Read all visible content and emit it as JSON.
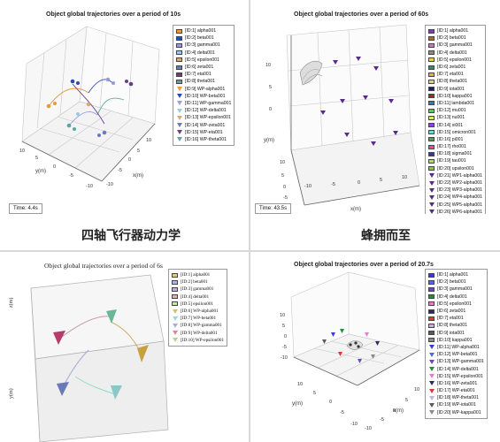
{
  "panel1": {
    "title": "Object global trajectories over a period of 10s",
    "time": "Time: 4.4s",
    "caption": "四轴飞行器动力学",
    "axes": {
      "y_label": "y(m)",
      "x_label": "x(m)",
      "y_ticks": [
        "10",
        "5",
        "0",
        "-5",
        "-10"
      ],
      "x_ticks": [
        "10",
        "5",
        "0",
        "-5",
        "-10"
      ]
    },
    "legend": [
      {
        "label": "[ID:1] alpha001",
        "color": "#e89a3c",
        "kind": "swatch"
      },
      {
        "label": "[ID:2] beta001",
        "color": "#2a4ca8",
        "kind": "swatch"
      },
      {
        "label": "[ID:3] gamma001",
        "color": "#9b9bd6",
        "kind": "swatch"
      },
      {
        "label": "[ID:4] delta001",
        "color": "#9cc8e8",
        "kind": "swatch"
      },
      {
        "label": "[ID:5] epsilon001",
        "color": "#d8a878",
        "kind": "swatch"
      },
      {
        "label": "[ID:6] zeta001",
        "color": "#6a7abf",
        "kind": "swatch"
      },
      {
        "label": "[ID:7] eta001",
        "color": "#6a3c8a",
        "kind": "swatch"
      },
      {
        "label": "[ID:8] theta001",
        "color": "#5aa8a0",
        "kind": "swatch"
      },
      {
        "label": "[ID:9] WP-alpha001",
        "color": "#e89a3c",
        "kind": "marker"
      },
      {
        "label": "[ID:10] WP-beta001",
        "color": "#2a4ca8",
        "kind": "marker"
      },
      {
        "label": "[ID:11] WP-gamma001",
        "color": "#9b9bd6",
        "kind": "marker"
      },
      {
        "label": "[ID:12] WP-delta001",
        "color": "#9cc8e8",
        "kind": "marker"
      },
      {
        "label": "[ID:13] WP-epsilon001",
        "color": "#d8a878",
        "kind": "marker"
      },
      {
        "label": "[ID:14] WP-zeta001",
        "color": "#6a7abf",
        "kind": "marker"
      },
      {
        "label": "[ID:15] WP-eta001",
        "color": "#6a3c8a",
        "kind": "marker"
      },
      {
        "label": "[ID:16] WP-theta001",
        "color": "#5aa8a0",
        "kind": "marker"
      }
    ]
  },
  "panel2": {
    "title": "Object global trajectories over a period of 60s",
    "time": "Time: 43.5s",
    "caption": "蜂拥而至",
    "axes": {
      "y_label": "y(m)",
      "x_label": "x(m)",
      "y_ticks": [
        "10",
        "5",
        "0",
        "-5",
        "-10"
      ],
      "x_ticks": [
        "-10",
        "-5",
        "0",
        "5",
        "10"
      ],
      "z_ticks": [
        "10",
        "5",
        "0"
      ]
    },
    "legend": [
      {
        "label": "[ID:1] alpha001",
        "color": "#7a3fa8",
        "kind": "swatch"
      },
      {
        "label": "[ID:2] beta001",
        "color": "#a86c3a",
        "kind": "swatch"
      },
      {
        "label": "[ID:3] gamma001",
        "color": "#c87ac8",
        "kind": "swatch"
      },
      {
        "label": "[ID:4] delta001",
        "color": "#8a8a8a",
        "kind": "swatch"
      },
      {
        "label": "[ID:5] epsilon001",
        "color": "#e8d04a",
        "kind": "swatch"
      },
      {
        "label": "[ID:6] zeta001",
        "color": "#3a8a6a",
        "kind": "swatch"
      },
      {
        "label": "[ID:7] eta001",
        "color": "#e8b040",
        "kind": "swatch"
      },
      {
        "label": "[ID:8] theta001",
        "color": "#d8d0a0",
        "kind": "swatch"
      },
      {
        "label": "[ID:9] iota001",
        "color": "#20205a",
        "kind": "swatch"
      },
      {
        "label": "[ID:10] kappa001",
        "color": "#a02a2a",
        "kind": "swatch"
      },
      {
        "label": "[ID:11] lambda001",
        "color": "#2a7ad8",
        "kind": "swatch"
      },
      {
        "label": "[ID:12] mu001",
        "color": "#60c860",
        "kind": "swatch"
      },
      {
        "label": "[ID:13] nu001",
        "color": "#d8e870",
        "kind": "swatch"
      },
      {
        "label": "[ID:14] xi001",
        "color": "#9a3ae8",
        "kind": "swatch"
      },
      {
        "label": "[ID:15] omicron001",
        "color": "#70d8d8",
        "kind": "swatch"
      },
      {
        "label": "[ID:16] pi001",
        "color": "#5a9a5a",
        "kind": "swatch"
      },
      {
        "label": "[ID:17] rho001",
        "color": "#e84a8a",
        "kind": "swatch"
      },
      {
        "label": "[ID:18] sigma001",
        "color": "#3a3a9a",
        "kind": "swatch"
      },
      {
        "label": "[ID:19] tau001",
        "color": "#b0e050",
        "kind": "swatch"
      },
      {
        "label": "[ID:20] upsilon001",
        "color": "#8ac848",
        "kind": "swatch"
      },
      {
        "label": "[ID:21] WP1-alpha001",
        "color": "#5a2a8a",
        "kind": "marker"
      },
      {
        "label": "[ID:22] WP2-alpha001",
        "color": "#5a2a8a",
        "kind": "marker"
      },
      {
        "label": "[ID:23] WP3-alpha001",
        "color": "#5a2a8a",
        "kind": "marker"
      },
      {
        "label": "[ID:24] WP4-alpha001",
        "color": "#5a2a8a",
        "kind": "marker"
      },
      {
        "label": "[ID:25] WP5-alpha001",
        "color": "#5a2a8a",
        "kind": "marker"
      },
      {
        "label": "[ID:26] WP6-alpha001",
        "color": "#5a2a8a",
        "kind": "marker"
      },
      {
        "label": "[ID:27] WP7-alpha001",
        "color": "#5a2a8a",
        "kind": "marker"
      },
      {
        "label": "[ID:28] WP8-alpha001",
        "color": "#5a2a8a",
        "kind": "marker"
      },
      {
        "label": "[ID:29] WP9-alpha001",
        "color": "#5a2a8a",
        "kind": "marker"
      }
    ]
  },
  "panel3": {
    "title": "Object global trajectories over a period of 6s",
    "axes": {
      "y_label": "y(m)",
      "z_label": "z(m)"
    },
    "legend": [
      {
        "label": "[ID:1] alpha001",
        "color": "#e8c888",
        "kind": "swatch"
      },
      {
        "label": "[ID:2] beta001",
        "color": "#a8b8e8",
        "kind": "swatch"
      },
      {
        "label": "[ID:3] gamma001",
        "color": "#c8a8e8",
        "kind": "swatch"
      },
      {
        "label": "[ID:4] delta001",
        "color": "#e8a8b8",
        "kind": "swatch"
      },
      {
        "label": "[ID:5] epsilon001",
        "color": "#c8e8a8",
        "kind": "swatch"
      },
      {
        "label": "[ID:6] WP-alpha001",
        "color": "#d8c070",
        "kind": "marker"
      },
      {
        "label": "[ID:7] WP-beta001",
        "color": "#9ad8d8",
        "kind": "marker"
      },
      {
        "label": "[ID:8] WP-gamma001",
        "color": "#b8a8d8",
        "kind": "marker"
      },
      {
        "label": "[ID:9] WP-delta001",
        "color": "#d88898",
        "kind": "marker"
      },
      {
        "label": "[ID:10] WP-epsilon001",
        "color": "#a8d888",
        "kind": "marker"
      }
    ]
  },
  "panel4": {
    "title": "Object global trajectories over a period of 20.7s",
    "axes": {
      "y_label": "y(m)",
      "x_label": "x(m)",
      "y_ticks": [
        "10",
        "5",
        "0",
        "-5",
        "-10"
      ],
      "x_ticks": [
        "-10",
        "-5",
        "0",
        "5",
        "10"
      ],
      "z_ticks": [
        "10",
        "5",
        "0",
        "-5",
        "-10"
      ]
    },
    "legend": [
      {
        "label": "[ID:1] alpha001",
        "color": "#3a3ad8",
        "kind": "swatch"
      },
      {
        "label": "[ID:2] beta001",
        "color": "#4a6ae8",
        "kind": "swatch"
      },
      {
        "label": "[ID:3] gamma001",
        "color": "#6a4ab8",
        "kind": "swatch"
      },
      {
        "label": "[ID:4] delta001",
        "color": "#2a8a3a",
        "kind": "swatch"
      },
      {
        "label": "[ID:5] epsilon001",
        "color": "#e87ad8",
        "kind": "swatch"
      },
      {
        "label": "[ID:6] zeta001",
        "color": "#2a2a6a",
        "kind": "swatch"
      },
      {
        "label": "[ID:7] eta001",
        "color": "#d83a3a",
        "kind": "swatch"
      },
      {
        "label": "[ID:8] theta001",
        "color": "#b8b8d8",
        "kind": "swatch"
      },
      {
        "label": "[ID:9] iota001",
        "color": "#5a5a5a",
        "kind": "swatch"
      },
      {
        "label": "[ID:10] kappa001",
        "color": "#8a8a8a",
        "kind": "swatch"
      },
      {
        "label": "[ID:11] WP-alpha001",
        "color": "#3a3ad8",
        "kind": "marker"
      },
      {
        "label": "[ID:12] WP-beta001",
        "color": "#4a6ae8",
        "kind": "marker"
      },
      {
        "label": "[ID:13] WP-gamma001",
        "color": "#6a4ab8",
        "kind": "marker"
      },
      {
        "label": "[ID:14] WP-delta001",
        "color": "#2a8a3a",
        "kind": "marker"
      },
      {
        "label": "[ID:15] WP-epsilon001",
        "color": "#e87ad8",
        "kind": "marker"
      },
      {
        "label": "[ID:16] WP-zeta001",
        "color": "#2a2a6a",
        "kind": "marker"
      },
      {
        "label": "[ID:17] WP-eta001",
        "color": "#d83a3a",
        "kind": "marker"
      },
      {
        "label": "[ID:18] WP-theta001",
        "color": "#b8b8d8",
        "kind": "marker"
      },
      {
        "label": "[ID:19] WP-iota001",
        "color": "#5a5a5a",
        "kind": "marker"
      },
      {
        "label": "[ID:20] WP-kappa001",
        "color": "#8a8a8a",
        "kind": "marker"
      }
    ]
  }
}
